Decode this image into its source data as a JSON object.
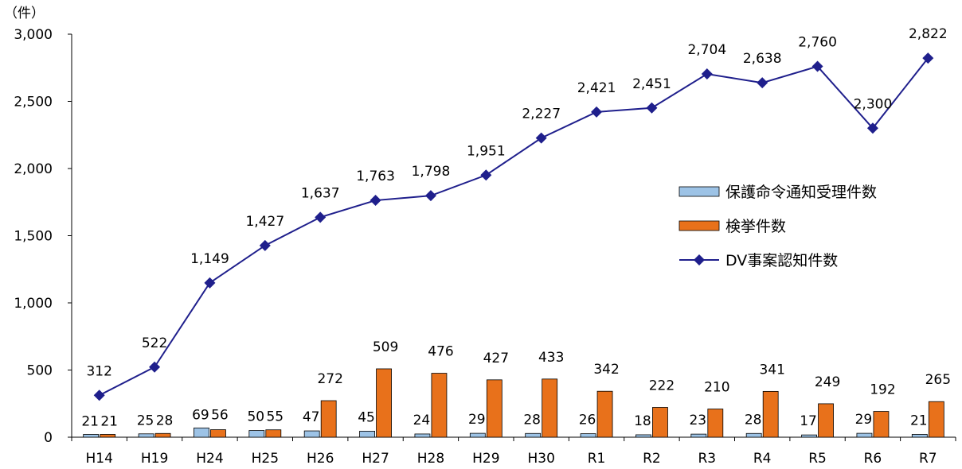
{
  "chart_data": {
    "type": "bar",
    "unit_label": "（件）",
    "categories": [
      "H14",
      "H19",
      "H24",
      "H25",
      "H26",
      "H27",
      "H28",
      "H29",
      "H30",
      "R1",
      "R2",
      "R3",
      "R4",
      "R5",
      "R6",
      "R7"
    ],
    "ylim": [
      0,
      3000
    ],
    "yticks": [
      0,
      500,
      1000,
      1500,
      2000,
      2500,
      3000
    ],
    "ytick_labels": [
      "0",
      "500",
      "1,000",
      "1,500",
      "2,000",
      "2,500",
      "3,000"
    ],
    "legend_position": "right",
    "series": [
      {
        "name": "保護命令通知受理件数",
        "kind": "bar",
        "color": "#9DC3E6",
        "values": [
          21,
          25,
          69,
          50,
          47,
          45,
          24,
          29,
          28,
          26,
          18,
          23,
          28,
          17,
          29,
          21
        ],
        "labels": [
          "21",
          "25",
          "69",
          "50",
          "47",
          "45",
          "24",
          "29",
          "28",
          "26",
          "18",
          "23",
          "28",
          "17",
          "29",
          "21"
        ]
      },
      {
        "name": "検挙件数",
        "kind": "bar",
        "color": "#E8711B",
        "values": [
          21,
          28,
          56,
          55,
          272,
          509,
          476,
          427,
          433,
          342,
          222,
          210,
          341,
          249,
          192,
          265
        ],
        "labels": [
          "21",
          "28",
          "56",
          "55",
          "272",
          "509",
          "476",
          "427",
          "433",
          "342",
          "222",
          "210",
          "341",
          "249",
          "192",
          "265"
        ]
      },
      {
        "name": "DV事案認知件数",
        "kind": "line",
        "color": "#1F1F8C",
        "marker": "diamond",
        "values": [
          312,
          522,
          1149,
          1427,
          1637,
          1763,
          1798,
          1951,
          2227,
          2421,
          2451,
          2704,
          2638,
          2760,
          2300,
          2822
        ],
        "labels": [
          "312",
          "522",
          "1,149",
          "1,427",
          "1,637",
          "1,763",
          "1,798",
          "1,951",
          "2,227",
          "2,421",
          "2,451",
          "2,704",
          "2,638",
          "2,760",
          "2,300",
          "2,822"
        ]
      }
    ]
  }
}
